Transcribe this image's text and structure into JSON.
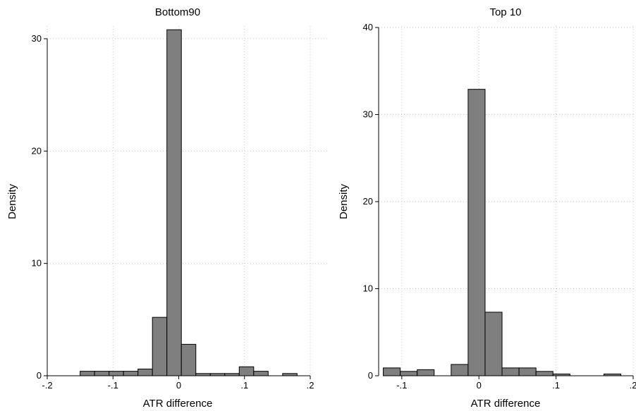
{
  "chart_data": [
    {
      "type": "bar",
      "title": "Bottom90",
      "xlabel": "ATR difference",
      "ylabel": "Density",
      "xlim": [
        -0.2,
        0.2
      ],
      "ylim": [
        0,
        31
      ],
      "xticks": [
        -0.2,
        -0.1,
        0,
        0.1,
        0.2
      ],
      "xtick_labels": [
        "-.2",
        "-.1",
        "0",
        ".1",
        ".2"
      ],
      "yticks": [
        0,
        10,
        20,
        30
      ],
      "ytick_labels": [
        "0",
        "10",
        "20",
        "30"
      ],
      "grid": true,
      "bins": [
        {
          "x0": -0.15,
          "x1": -0.128,
          "density": 0.4
        },
        {
          "x0": -0.128,
          "x1": -0.106,
          "density": 0.4
        },
        {
          "x0": -0.106,
          "x1": -0.084,
          "density": 0.4
        },
        {
          "x0": -0.084,
          "x1": -0.062,
          "density": 0.4
        },
        {
          "x0": -0.062,
          "x1": -0.04,
          "density": 0.6
        },
        {
          "x0": -0.04,
          "x1": -0.018,
          "density": 5.2
        },
        {
          "x0": -0.018,
          "x1": 0.004,
          "density": 30.8
        },
        {
          "x0": 0.004,
          "x1": 0.026,
          "density": 2.8
        },
        {
          "x0": 0.026,
          "x1": 0.048,
          "density": 0.2
        },
        {
          "x0": 0.048,
          "x1": 0.07,
          "density": 0.2
        },
        {
          "x0": 0.07,
          "x1": 0.092,
          "density": 0.2
        },
        {
          "x0": 0.092,
          "x1": 0.114,
          "density": 0.8
        },
        {
          "x0": 0.114,
          "x1": 0.136,
          "density": 0.4
        },
        {
          "x0": 0.158,
          "x1": 0.18,
          "density": 0.2
        }
      ]
    },
    {
      "type": "bar",
      "title": "Top 10",
      "xlabel": "ATR difference",
      "ylabel": "Density",
      "xlim": [
        -0.13,
        0.2
      ],
      "ylim": [
        0,
        40
      ],
      "xticks": [
        -0.1,
        0,
        0.1,
        0.2
      ],
      "xtick_labels": [
        "-.1",
        "0",
        ".1",
        ".2"
      ],
      "yticks": [
        0,
        10,
        20,
        30,
        40
      ],
      "ytick_labels": [
        "0",
        "10",
        "20",
        "30",
        "40"
      ],
      "grid": true,
      "bins": [
        {
          "x0": -0.124,
          "x1": -0.102,
          "density": 0.9
        },
        {
          "x0": -0.102,
          "x1": -0.08,
          "density": 0.5
        },
        {
          "x0": -0.08,
          "x1": -0.058,
          "density": 0.7
        },
        {
          "x0": -0.036,
          "x1": -0.014,
          "density": 1.3
        },
        {
          "x0": -0.014,
          "x1": 0.008,
          "density": 32.9
        },
        {
          "x0": 0.008,
          "x1": 0.03,
          "density": 7.3
        },
        {
          "x0": 0.03,
          "x1": 0.052,
          "density": 0.9
        },
        {
          "x0": 0.052,
          "x1": 0.074,
          "density": 0.9
        },
        {
          "x0": 0.074,
          "x1": 0.096,
          "density": 0.5
        },
        {
          "x0": 0.096,
          "x1": 0.118,
          "density": 0.2
        },
        {
          "x0": 0.162,
          "x1": 0.184,
          "density": 0.2
        }
      ]
    }
  ]
}
